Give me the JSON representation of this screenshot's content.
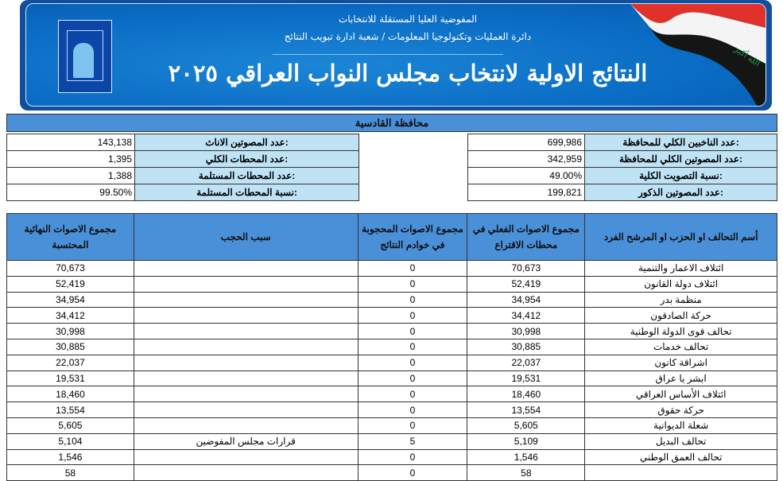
{
  "header": {
    "line1": "المفوضية العليا المستقلة للانتخابات",
    "line2": "دائرة العمليات وتكنولوجيا المعلومات / شعبة ادارة تبويب النتائج",
    "title": "النتائج الاولية لانتخاب مجلس النواب العراقي ٢٠٢٥",
    "flag_text": "الله أكبر",
    "colors": {
      "banner": "#0a6cc4",
      "header_fill": "#4a90d9",
      "label_fill": "#bfe3f5"
    }
  },
  "province": "محافظة القادسية",
  "summary_right": [
    {
      "label": "عدد الناخبين الكلي للمحافظة:",
      "value": "699,986"
    },
    {
      "label": "عدد المصوتين الكلي للمحافظة:",
      "value": "342,959"
    },
    {
      "label": "نسبة التصويت الكلية:",
      "value": "49.00%"
    },
    {
      "label": "عدد المصوتين الذكور:",
      "value": "199,821"
    }
  ],
  "summary_left": [
    {
      "label": "عدد المصوتين الاناث:",
      "value": "143,138"
    },
    {
      "label": "عدد المحطات الكلي:",
      "value": "1,395"
    },
    {
      "label": "عدد المحطات المستلمة:",
      "value": "1,388"
    },
    {
      "label": "نسبة المحطات المستلمة:",
      "value": "99.50%"
    }
  ],
  "table": {
    "headers": {
      "name": "أسم التحالف او الحزب او المرشح الفرد",
      "actual": "مجموع الاصوات الفعلي في محطات الاقتراع",
      "blocked": "مجموع الاصوات المحجوبة في خوادم النتائج",
      "reason": "سبب الحجب",
      "final": "مجموع الاصوات النهائية المحتسبة"
    },
    "rows": [
      {
        "name": "ائتلاف الاعمار والتنمية",
        "actual": "70,673",
        "blocked": "0",
        "reason": "",
        "final": "70,673"
      },
      {
        "name": "ائتلاف دولة القانون",
        "actual": "52,419",
        "blocked": "0",
        "reason": "",
        "final": "52,419"
      },
      {
        "name": "منظمة بدر",
        "actual": "34,954",
        "blocked": "0",
        "reason": "",
        "final": "34,954"
      },
      {
        "name": "حركة الصادقون",
        "actual": "34,412",
        "blocked": "0",
        "reason": "",
        "final": "34,412"
      },
      {
        "name": "تحالف قوى الدولة الوطنية",
        "actual": "30,998",
        "blocked": "0",
        "reason": "",
        "final": "30,998"
      },
      {
        "name": "تحالف خدمات",
        "actual": "30,885",
        "blocked": "0",
        "reason": "",
        "final": "30,885"
      },
      {
        "name": "اشراقة كانون",
        "actual": "22,037",
        "blocked": "0",
        "reason": "",
        "final": "22,037"
      },
      {
        "name": "ابشر يا عراق",
        "actual": "19,531",
        "blocked": "0",
        "reason": "",
        "final": "19,531"
      },
      {
        "name": "ائتلاف الأساس العراقي",
        "actual": "18,460",
        "blocked": "0",
        "reason": "",
        "final": "18,460"
      },
      {
        "name": "حركة حقوق",
        "actual": "13,554",
        "blocked": "0",
        "reason": "",
        "final": "13,554"
      },
      {
        "name": "شعلة الديوانية",
        "actual": "5,605",
        "blocked": "0",
        "reason": "",
        "final": "5,605"
      },
      {
        "name": "تحالف البديل",
        "actual": "5,109",
        "blocked": "5",
        "reason": "قرارات مجلس المفوضين",
        "final": "5,104"
      },
      {
        "name": "تحالف العمق الوطني",
        "actual": "1,546",
        "blocked": "0",
        "reason": "",
        "final": "1,546"
      },
      {
        "name": "",
        "actual": "58",
        "blocked": "0",
        "reason": "",
        "final": "58"
      }
    ]
  }
}
